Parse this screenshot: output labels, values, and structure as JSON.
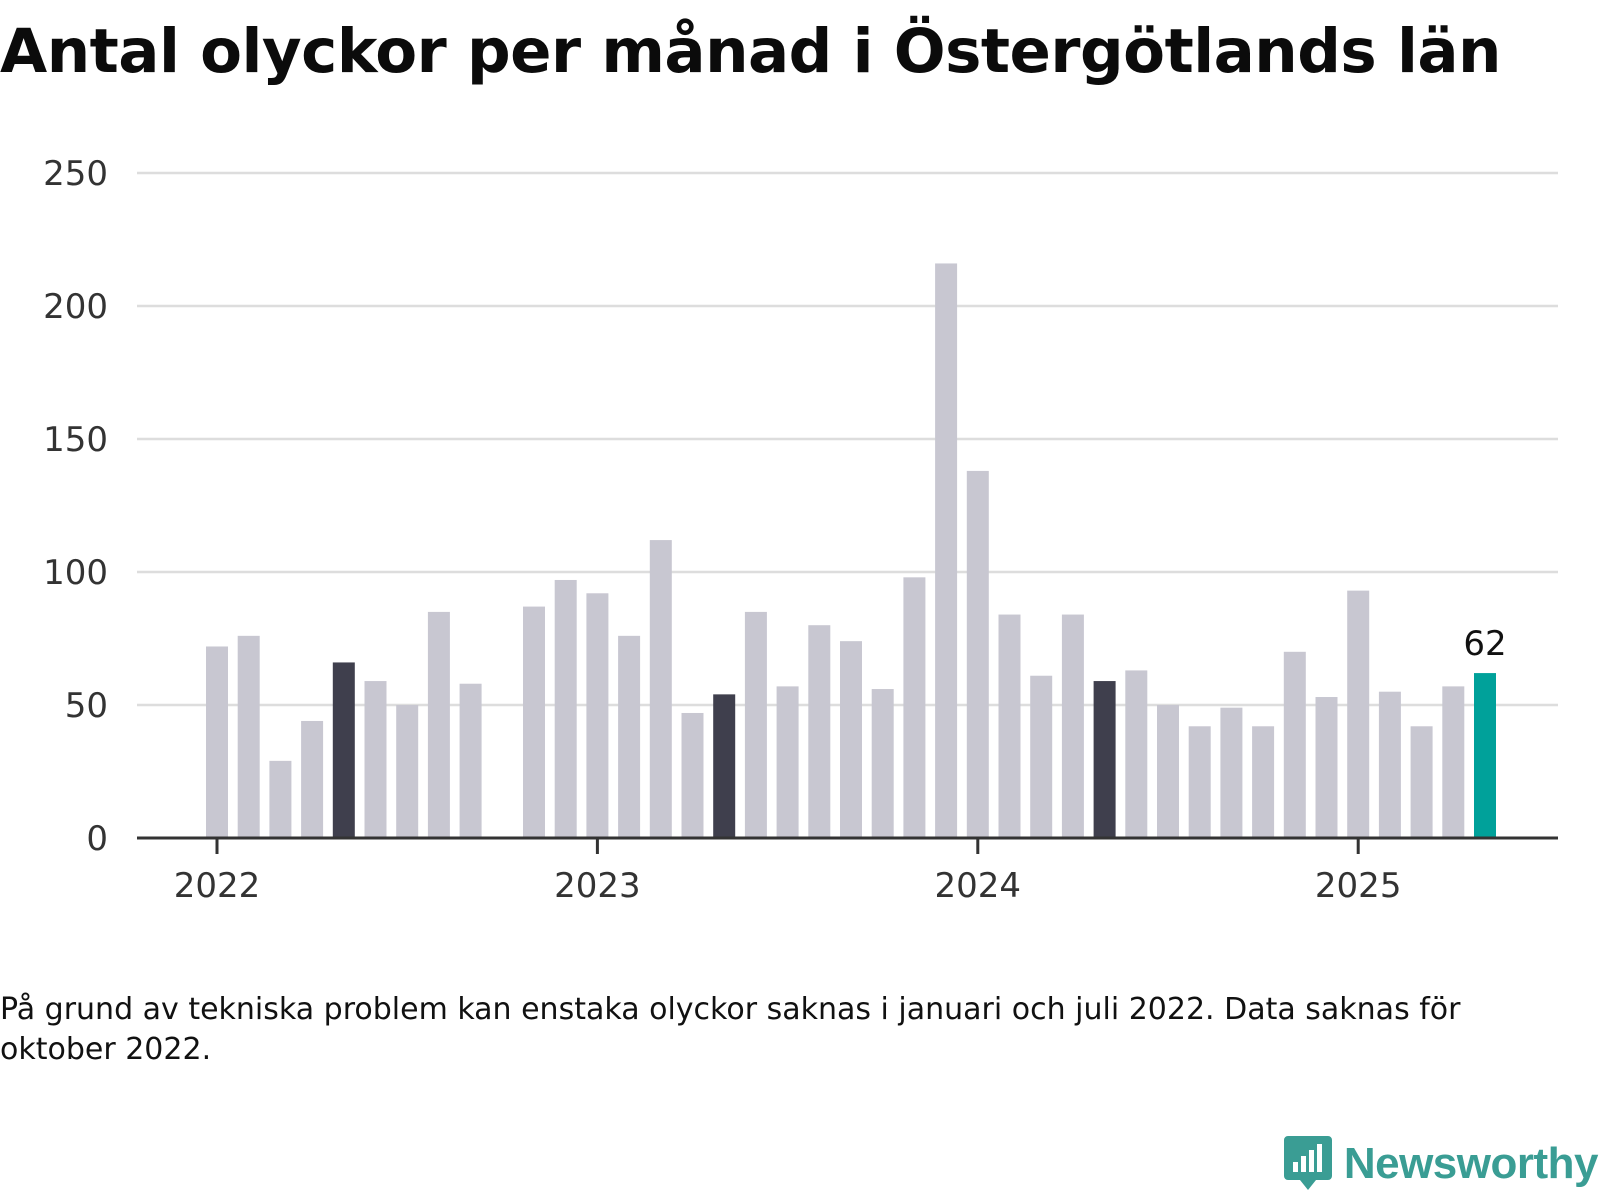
{
  "title": "Antal olyckor per månad i Östergötlands län",
  "note": "På grund av tekniska problem kan enstaka olyckor saknas i januari och juli 2022. Data saknas för oktober 2022.",
  "brand": {
    "name": "Newsworthy",
    "color": "#3a9d94",
    "icon": "newsworthy-logo-icon"
  },
  "colors": {
    "default": "#c8c7d1",
    "same_month": "#3f3f4d",
    "latest": "#00a19a"
  },
  "chart_data": {
    "type": "bar",
    "title": "Antal olyckor per månad i Östergötlands län",
    "xlabel": "",
    "ylabel": "",
    "ylim": [
      0,
      250
    ],
    "yticks": [
      "0",
      "50",
      "100",
      "150",
      "200",
      "250"
    ],
    "xticks": [
      {
        "label": "2022",
        "month": "2022-01"
      },
      {
        "label": "2023",
        "month": "2023-01"
      },
      {
        "label": "2024",
        "month": "2024-01"
      },
      {
        "label": "2025",
        "month": "2025-01"
      }
    ],
    "grid": true,
    "annotation": {
      "month": "2025-05",
      "text": "62"
    },
    "data": [
      {
        "month": "2022-01",
        "value": 72,
        "color": "#c8c7d1"
      },
      {
        "month": "2022-02",
        "value": 76,
        "color": "#c8c7d1"
      },
      {
        "month": "2022-03",
        "value": 29,
        "color": "#c8c7d1"
      },
      {
        "month": "2022-04",
        "value": 44,
        "color": "#c8c7d1"
      },
      {
        "month": "2022-05",
        "value": 66,
        "color": "#3f3f4d"
      },
      {
        "month": "2022-06",
        "value": 59,
        "color": "#c8c7d1"
      },
      {
        "month": "2022-07",
        "value": 50,
        "color": "#c8c7d1"
      },
      {
        "month": "2022-08",
        "value": 85,
        "color": "#c8c7d1"
      },
      {
        "month": "2022-09",
        "value": 58,
        "color": "#c8c7d1"
      },
      {
        "month": "2022-10",
        "value": null,
        "color": "#c8c7d1"
      },
      {
        "month": "2022-11",
        "value": 87,
        "color": "#c8c7d1"
      },
      {
        "month": "2022-12",
        "value": 97,
        "color": "#c8c7d1"
      },
      {
        "month": "2023-01",
        "value": 92,
        "color": "#c8c7d1"
      },
      {
        "month": "2023-02",
        "value": 76,
        "color": "#c8c7d1"
      },
      {
        "month": "2023-03",
        "value": 112,
        "color": "#c8c7d1"
      },
      {
        "month": "2023-04",
        "value": 47,
        "color": "#c8c7d1"
      },
      {
        "month": "2023-05",
        "value": 54,
        "color": "#3f3f4d"
      },
      {
        "month": "2023-06",
        "value": 85,
        "color": "#c8c7d1"
      },
      {
        "month": "2023-07",
        "value": 57,
        "color": "#c8c7d1"
      },
      {
        "month": "2023-08",
        "value": 80,
        "color": "#c8c7d1"
      },
      {
        "month": "2023-09",
        "value": 74,
        "color": "#c8c7d1"
      },
      {
        "month": "2023-10",
        "value": 56,
        "color": "#c8c7d1"
      },
      {
        "month": "2023-11",
        "value": 98,
        "color": "#c8c7d1"
      },
      {
        "month": "2023-12",
        "value": 216,
        "color": "#c8c7d1"
      },
      {
        "month": "2024-01",
        "value": 138,
        "color": "#c8c7d1"
      },
      {
        "month": "2024-02",
        "value": 84,
        "color": "#c8c7d1"
      },
      {
        "month": "2024-03",
        "value": 61,
        "color": "#c8c7d1"
      },
      {
        "month": "2024-04",
        "value": 84,
        "color": "#c8c7d1"
      },
      {
        "month": "2024-05",
        "value": 59,
        "color": "#3f3f4d"
      },
      {
        "month": "2024-06",
        "value": 63,
        "color": "#c8c7d1"
      },
      {
        "month": "2024-07",
        "value": 50,
        "color": "#c8c7d1"
      },
      {
        "month": "2024-08",
        "value": 42,
        "color": "#c8c7d1"
      },
      {
        "month": "2024-09",
        "value": 49,
        "color": "#c8c7d1"
      },
      {
        "month": "2024-10",
        "value": 42,
        "color": "#c8c7d1"
      },
      {
        "month": "2024-11",
        "value": 70,
        "color": "#c8c7d1"
      },
      {
        "month": "2024-12",
        "value": 53,
        "color": "#c8c7d1"
      },
      {
        "month": "2025-01",
        "value": 93,
        "color": "#c8c7d1"
      },
      {
        "month": "2025-02",
        "value": 55,
        "color": "#c8c7d1"
      },
      {
        "month": "2025-03",
        "value": 42,
        "color": "#c8c7d1"
      },
      {
        "month": "2025-04",
        "value": 57,
        "color": "#c8c7d1"
      },
      {
        "month": "2025-05",
        "value": 62,
        "color": "#00a19a"
      }
    ]
  }
}
